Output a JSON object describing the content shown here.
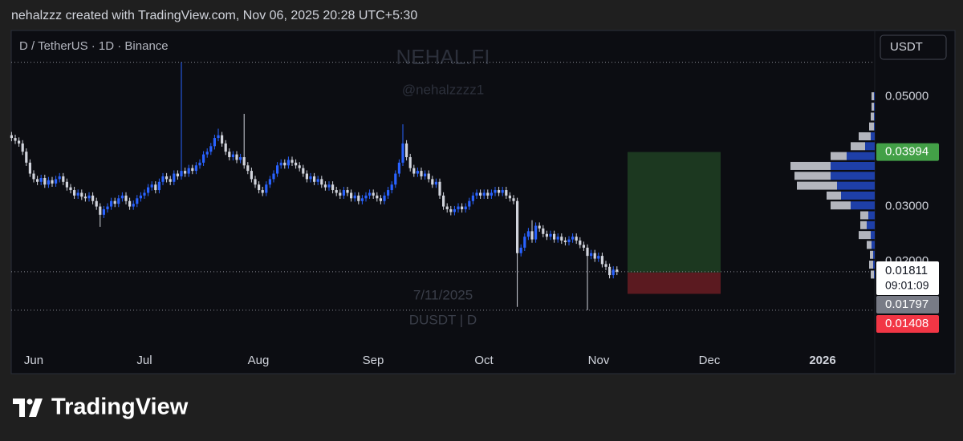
{
  "header": "nehalzzz created with TradingView.com, Nov 06, 2025 20:28 UTC+5:30",
  "chart_data": {
    "type": "candlestick",
    "title": "D / TetherUS · 1D · Binance",
    "currency": "USDT",
    "watermark": [
      "NEHAL.FI",
      "@nehalzzzz1",
      "7/11/2025",
      "DUSDT | D"
    ],
    "x_labels": [
      "Jun",
      "Jul",
      "Aug",
      "Sep",
      "Oct",
      "Nov",
      "Dec",
      "2026"
    ],
    "up_color": "#2962ff",
    "down_color": "#d1d4dc",
    "ylim": [
      0.0045,
      0.0621
    ],
    "yticks": [
      {
        "value": 0.02,
        "label": "0.02000"
      },
      {
        "value": 0.03,
        "label": "0.03000"
      },
      {
        "value": 0.05,
        "label": "0.05000"
      }
    ],
    "open": [
      0.043,
      0.0425,
      0.042,
      0.0415,
      0.04,
      0.038,
      0.036,
      0.035,
      0.0345,
      0.0352,
      0.034,
      0.0348,
      0.0342,
      0.035,
      0.0355,
      0.0345,
      0.0335,
      0.033,
      0.032,
      0.0325,
      0.0318,
      0.0315,
      0.032,
      0.031,
      0.03,
      0.0285,
      0.0295,
      0.03,
      0.031,
      0.0305,
      0.0315,
      0.032,
      0.031,
      0.03,
      0.0305,
      0.0315,
      0.032,
      0.0325,
      0.0335,
      0.034,
      0.033,
      0.0345,
      0.0355,
      0.035,
      0.0345,
      0.036,
      0.0355,
      0.0365,
      0.036,
      0.037,
      0.0365,
      0.0375,
      0.038,
      0.0395,
      0.04,
      0.041,
      0.0425,
      0.043,
      0.0415,
      0.04,
      0.039,
      0.0395,
      0.0385,
      0.039,
      0.0375,
      0.0365,
      0.035,
      0.034,
      0.033,
      0.0325,
      0.034,
      0.035,
      0.036,
      0.0375,
      0.038,
      0.0375,
      0.0385,
      0.038,
      0.0375,
      0.037,
      0.036,
      0.035,
      0.0355,
      0.0345,
      0.035,
      0.034,
      0.0335,
      0.034,
      0.033,
      0.0325,
      0.032,
      0.033,
      0.0325,
      0.0315,
      0.032,
      0.031,
      0.0315,
      0.032,
      0.0325,
      0.032,
      0.0315,
      0.031,
      0.032,
      0.033,
      0.034,
      0.036,
      0.038,
      0.0415,
      0.039,
      0.037,
      0.036,
      0.0365,
      0.0355,
      0.036,
      0.035,
      0.034,
      0.0345,
      0.032,
      0.03,
      0.0295,
      0.029,
      0.0295,
      0.03,
      0.0295,
      0.03,
      0.031,
      0.032,
      0.0325,
      0.032,
      0.0325,
      0.032,
      0.0325,
      0.033,
      0.0325,
      0.033,
      0.032,
      0.0315,
      0.031,
      0.0215,
      0.0225,
      0.0245,
      0.0255,
      0.024,
      0.0265,
      0.026,
      0.025,
      0.0245,
      0.025,
      0.024,
      0.0245,
      0.0238,
      0.0235,
      0.024,
      0.0245,
      0.0238,
      0.023,
      0.0225,
      0.021,
      0.0215,
      0.0205,
      0.021,
      0.0195,
      0.019,
      0.0175,
      0.0185
    ],
    "high": [
      0.0436,
      0.0431,
      0.0426,
      0.0421,
      0.0406,
      0.0386,
      0.0366,
      0.0356,
      0.0358,
      0.0358,
      0.0354,
      0.0354,
      0.0356,
      0.0361,
      0.0361,
      0.0351,
      0.0341,
      0.0336,
      0.0331,
      0.0331,
      0.0324,
      0.0326,
      0.0326,
      0.0316,
      0.0306,
      0.0301,
      0.0306,
      0.0316,
      0.0316,
      0.0321,
      0.0326,
      0.0326,
      0.0316,
      0.0311,
      0.0321,
      0.0326,
      0.0331,
      0.0341,
      0.0346,
      0.0346,
      0.0351,
      0.0361,
      0.0361,
      0.0356,
      0.0366,
      0.0366,
      0.0563,
      0.0371,
      0.0376,
      0.0376,
      0.0381,
      0.0386,
      0.0401,
      0.0406,
      0.0416,
      0.0431,
      0.0442,
      0.0436,
      0.0421,
      0.0406,
      0.0401,
      0.0401,
      0.0396,
      0.0469,
      0.0381,
      0.0371,
      0.0356,
      0.0346,
      0.0336,
      0.0346,
      0.0356,
      0.0366,
      0.0381,
      0.0386,
      0.0386,
      0.0391,
      0.0391,
      0.0386,
      0.0381,
      0.0376,
      0.0366,
      0.0361,
      0.0361,
      0.0356,
      0.0356,
      0.0346,
      0.0346,
      0.0346,
      0.0336,
      0.0331,
      0.0336,
      0.0336,
      0.0331,
      0.0326,
      0.0326,
      0.0321,
      0.0326,
      0.0331,
      0.0331,
      0.0326,
      0.0321,
      0.0326,
      0.0336,
      0.0346,
      0.0366,
      0.0386,
      0.045,
      0.0421,
      0.0396,
      0.0376,
      0.0371,
      0.0371,
      0.0366,
      0.0366,
      0.0356,
      0.0351,
      0.0351,
      0.0326,
      0.0306,
      0.0301,
      0.0301,
      0.0306,
      0.0306,
      0.0306,
      0.0316,
      0.0326,
      0.0331,
      0.0331,
      0.0331,
      0.0331,
      0.0331,
      0.0336,
      0.0336,
      0.0336,
      0.0336,
      0.0326,
      0.0321,
      0.0316,
      0.0231,
      0.0251,
      0.0261,
      0.0275,
      0.0271,
      0.0271,
      0.0266,
      0.0256,
      0.0256,
      0.0256,
      0.0251,
      0.0251,
      0.0244,
      0.0246,
      0.0251,
      0.0251,
      0.0244,
      0.0236,
      0.0231,
      0.0221,
      0.0221,
      0.0216,
      0.0216,
      0.0201,
      0.0196,
      0.0191,
      0.0191
    ],
    "low": [
      0.0419,
      0.0414,
      0.0409,
      0.0394,
      0.0374,
      0.0354,
      0.0344,
      0.0339,
      0.0339,
      0.0334,
      0.0334,
      0.0336,
      0.0336,
      0.0344,
      0.0339,
      0.0329,
      0.0324,
      0.0314,
      0.0314,
      0.0312,
      0.0309,
      0.0309,
      0.0304,
      0.0294,
      0.0263,
      0.0279,
      0.0289,
      0.0294,
      0.0299,
      0.0299,
      0.0309,
      0.0304,
      0.0294,
      0.0294,
      0.0299,
      0.0309,
      0.0314,
      0.0319,
      0.0329,
      0.0324,
      0.0324,
      0.0339,
      0.0344,
      0.0339,
      0.0339,
      0.0349,
      0.0349,
      0.0354,
      0.0354,
      0.0359,
      0.0359,
      0.0369,
      0.0374,
      0.0389,
      0.0394,
      0.0404,
      0.0419,
      0.0409,
      0.0394,
      0.0384,
      0.0384,
      0.0379,
      0.0379,
      0.0369,
      0.0359,
      0.0344,
      0.0334,
      0.0324,
      0.0319,
      0.0319,
      0.0334,
      0.0344,
      0.0354,
      0.0369,
      0.0369,
      0.0369,
      0.0374,
      0.0369,
      0.0364,
      0.0354,
      0.0344,
      0.0344,
      0.0339,
      0.0339,
      0.0334,
      0.0329,
      0.0329,
      0.0324,
      0.0319,
      0.0314,
      0.0314,
      0.0319,
      0.0309,
      0.0309,
      0.0304,
      0.0304,
      0.0309,
      0.0314,
      0.0314,
      0.0309,
      0.0304,
      0.0304,
      0.0314,
      0.0324,
      0.0334,
      0.0354,
      0.0374,
      0.0384,
      0.0364,
      0.0354,
      0.0354,
      0.0349,
      0.0349,
      0.0344,
      0.0334,
      0.0334,
      0.0314,
      0.0294,
      0.0289,
      0.0284,
      0.0284,
      0.0289,
      0.0289,
      0.0289,
      0.0294,
      0.0304,
      0.0314,
      0.0314,
      0.0314,
      0.0314,
      0.0314,
      0.0319,
      0.0319,
      0.0319,
      0.0314,
      0.0309,
      0.0304,
      0.0117,
      0.0209,
      0.0219,
      0.0239,
      0.0234,
      0.0234,
      0.0254,
      0.0244,
      0.0239,
      0.0239,
      0.0234,
      0.0234,
      0.0232,
      0.0229,
      0.0229,
      0.0234,
      0.0232,
      0.0224,
      0.0219,
      0.0111,
      0.0204,
      0.0199,
      0.0199,
      0.0189,
      0.0184,
      0.0169,
      0.0169,
      0.0175
    ],
    "close": [
      0.0425,
      0.042,
      0.0415,
      0.04,
      0.038,
      0.036,
      0.035,
      0.0345,
      0.0352,
      0.034,
      0.0348,
      0.0342,
      0.035,
      0.0355,
      0.0345,
      0.0335,
      0.033,
      0.032,
      0.0325,
      0.0318,
      0.0315,
      0.032,
      0.031,
      0.03,
      0.0285,
      0.0295,
      0.03,
      0.031,
      0.0305,
      0.0315,
      0.032,
      0.031,
      0.03,
      0.0305,
      0.0315,
      0.032,
      0.0325,
      0.0335,
      0.034,
      0.033,
      0.0345,
      0.0355,
      0.035,
      0.0345,
      0.036,
      0.0355,
      0.0365,
      0.036,
      0.037,
      0.0365,
      0.0375,
      0.038,
      0.0395,
      0.04,
      0.041,
      0.0425,
      0.043,
      0.0415,
      0.04,
      0.039,
      0.0395,
      0.0385,
      0.039,
      0.0375,
      0.0365,
      0.035,
      0.034,
      0.033,
      0.0325,
      0.034,
      0.035,
      0.036,
      0.0375,
      0.038,
      0.0375,
      0.0385,
      0.038,
      0.0375,
      0.037,
      0.036,
      0.035,
      0.0355,
      0.0345,
      0.035,
      0.034,
      0.0335,
      0.034,
      0.033,
      0.0325,
      0.032,
      0.033,
      0.0325,
      0.0315,
      0.032,
      0.031,
      0.0315,
      0.032,
      0.0325,
      0.032,
      0.0315,
      0.031,
      0.032,
      0.033,
      0.034,
      0.036,
      0.038,
      0.0415,
      0.039,
      0.037,
      0.036,
      0.0365,
      0.0355,
      0.036,
      0.035,
      0.034,
      0.0345,
      0.032,
      0.03,
      0.0295,
      0.029,
      0.0295,
      0.03,
      0.0295,
      0.03,
      0.031,
      0.032,
      0.0325,
      0.032,
      0.0325,
      0.032,
      0.0325,
      0.033,
      0.0325,
      0.033,
      0.032,
      0.0315,
      0.031,
      0.0215,
      0.0225,
      0.0245,
      0.0255,
      0.024,
      0.0265,
      0.026,
      0.025,
      0.0245,
      0.025,
      0.024,
      0.0245,
      0.0238,
      0.0235,
      0.024,
      0.0245,
      0.0238,
      0.023,
      0.0225,
      0.021,
      0.0215,
      0.0205,
      0.021,
      0.0195,
      0.019,
      0.0175,
      0.0185,
      0.01811
    ],
    "countdown": "09:01:09",
    "position": {
      "target": 0.03994,
      "entry": 0.01797,
      "stop": 0.01408
    },
    "volume_profile": {
      "prices": [
        0.0501,
        0.0482,
        0.0464,
        0.0446,
        0.0428,
        0.041,
        0.0392,
        0.0374,
        0.0356,
        0.0338,
        0.032,
        0.0302,
        0.0284,
        0.0266,
        0.0248,
        0.023,
        0.0212,
        0.0194,
        0.0176
      ],
      "up_volume": [
        1,
        1,
        1,
        1,
        5,
        12,
        35,
        55,
        55,
        47,
        42,
        30,
        8,
        10,
        5,
        4,
        2,
        2,
        1
      ],
      "down_volume": [
        3,
        3,
        4,
        6,
        15,
        18,
        20,
        50,
        45,
        50,
        18,
        25,
        10,
        8,
        15,
        6,
        4,
        5,
        4
      ]
    }
  },
  "footer": "TradingView"
}
